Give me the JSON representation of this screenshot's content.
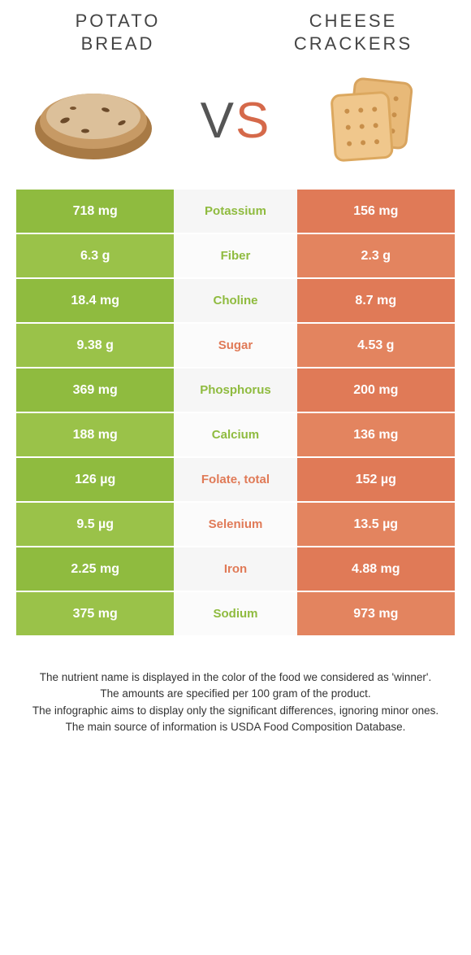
{
  "titles": {
    "left_line1": "POTATO",
    "left_line2": "BREAD",
    "right_line1": "CHEESE",
    "right_line2": "CRACKERS"
  },
  "vs": {
    "v": "V",
    "s": "S"
  },
  "colors": {
    "green": "#8fbb3f",
    "orange": "#e07a57",
    "mid_bg": "#f6f6f6"
  },
  "rows": [
    {
      "left": "718 mg",
      "label": "Potassium",
      "right": "156 mg",
      "winner": "left"
    },
    {
      "left": "6.3 g",
      "label": "Fiber",
      "right": "2.3 g",
      "winner": "left"
    },
    {
      "left": "18.4 mg",
      "label": "Choline",
      "right": "8.7 mg",
      "winner": "left"
    },
    {
      "left": "9.38 g",
      "label": "Sugar",
      "right": "4.53 g",
      "winner": "right"
    },
    {
      "left": "369 mg",
      "label": "Phosphorus",
      "right": "200 mg",
      "winner": "left"
    },
    {
      "left": "188 mg",
      "label": "Calcium",
      "right": "136 mg",
      "winner": "left"
    },
    {
      "left": "126 µg",
      "label": "Folate, total",
      "right": "152 µg",
      "winner": "right"
    },
    {
      "left": "9.5 µg",
      "label": "Selenium",
      "right": "13.5 µg",
      "winner": "right"
    },
    {
      "left": "2.25 mg",
      "label": "Iron",
      "right": "4.88 mg",
      "winner": "right"
    },
    {
      "left": "375 mg",
      "label": "Sodium",
      "right": "973 mg",
      "winner": "left"
    }
  ],
  "footer": {
    "l1": "The nutrient name is displayed in the color of the food we considered as 'winner'.",
    "l2": "The amounts are specified per 100 gram of the product.",
    "l3": "The infographic aims to display only the significant differences, ignoring minor ones.",
    "l4": "The main source of information is USDA Food Composition Database."
  }
}
